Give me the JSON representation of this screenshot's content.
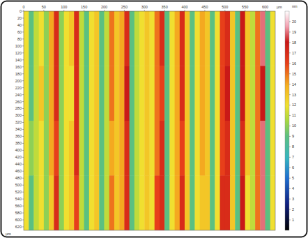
{
  "chart_data": {
    "type": "heatmap",
    "x_label": "µm",
    "y_label": "µm",
    "xlim": [
      0,
      625
    ],
    "ylim": [
      0,
      630
    ],
    "xticks": [
      0,
      50,
      100,
      150,
      200,
      250,
      300,
      350,
      400,
      450,
      500,
      550,
      600
    ],
    "yticks": [
      0,
      20,
      40,
      60,
      80,
      100,
      120,
      140,
      160,
      180,
      200,
      220,
      240,
      260,
      280,
      300,
      320,
      340,
      360,
      380,
      400,
      420,
      440,
      460,
      480,
      500,
      520,
      540,
      560,
      580,
      600,
      620
    ],
    "cells": [
      [
        12,
        9,
        11,
        12,
        10,
        14,
        17,
        10,
        12,
        13,
        17,
        11,
        9,
        12,
        13,
        9,
        11,
        15,
        13,
        14,
        17,
        9,
        11,
        12,
        13,
        12,
        15,
        17,
        9,
        12,
        14,
        17,
        13,
        9,
        12,
        14,
        13,
        9,
        12,
        16,
        17,
        13,
        9,
        18,
        13,
        11,
        15,
        19,
        9,
        12
      ],
      [
        12,
        9,
        11,
        13,
        10,
        14,
        17,
        10,
        12,
        12,
        17,
        11,
        9,
        12,
        13,
        9,
        11,
        15,
        13,
        14,
        18,
        9,
        11,
        12,
        13,
        12,
        15,
        16,
        9,
        12,
        14,
        17,
        13,
        9,
        12,
        14,
        13,
        9,
        12,
        16,
        18,
        13,
        9,
        18,
        13,
        11,
        15,
        18,
        9,
        12
      ],
      [
        12,
        10,
        11,
        12,
        10,
        14,
        16,
        10,
        12,
        13,
        17,
        11,
        9,
        12,
        13,
        9,
        11,
        14,
        13,
        14,
        17,
        9,
        11,
        12,
        13,
        12,
        15,
        17,
        9,
        12,
        14,
        16,
        13,
        9,
        12,
        14,
        13,
        9,
        12,
        16,
        17,
        13,
        9,
        17,
        13,
        11,
        15,
        19,
        9,
        12
      ],
      [
        12,
        9,
        11,
        12,
        10,
        13,
        17,
        10,
        12,
        13,
        16,
        11,
        9,
        12,
        13,
        9,
        11,
        15,
        13,
        14,
        17,
        9,
        11,
        12,
        13,
        12,
        16,
        17,
        9,
        12,
        14,
        17,
        13,
        9,
        12,
        13,
        13,
        9,
        12,
        17,
        17,
        13,
        9,
        18,
        12,
        11,
        15,
        19,
        9,
        12
      ]
    ],
    "colorbar": {
      "range": [
        0,
        21
      ],
      "ticks": [
        1,
        2,
        3,
        4,
        5,
        6,
        7,
        8,
        9,
        10,
        11,
        12,
        13,
        14,
        15,
        16,
        17,
        18,
        19,
        20
      ],
      "label": "nm"
    }
  }
}
